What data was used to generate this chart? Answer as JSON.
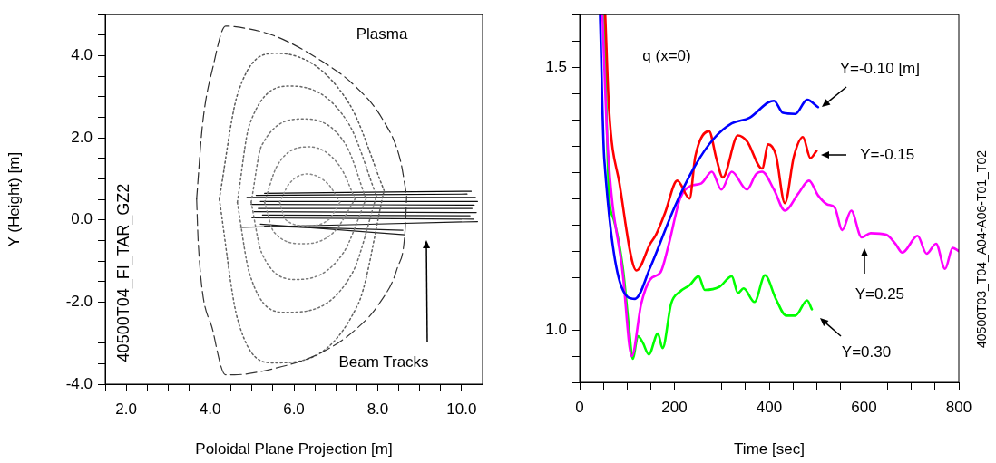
{
  "chart_data": [
    {
      "type": "line",
      "xlabel": "Poloidal Plane Projection [m]",
      "ylabel": "Y (Height) [m]",
      "xlim": [
        1.5,
        10.5
      ],
      "ylim": [
        -4,
        5
      ],
      "xticks": [
        {
          "value": 1.5,
          "label": null
        },
        {
          "value": 2,
          "label": "2.0"
        },
        {
          "value": 2.5,
          "label": null
        },
        {
          "value": 3,
          "label": null
        },
        {
          "value": 3.5,
          "label": null
        },
        {
          "value": 4,
          "label": "4.0"
        },
        {
          "value": 4.5,
          "label": null
        },
        {
          "value": 5,
          "label": null
        },
        {
          "value": 5.5,
          "label": null
        },
        {
          "value": 6,
          "label": "6.0"
        },
        {
          "value": 6.5,
          "label": null
        },
        {
          "value": 7,
          "label": null
        },
        {
          "value": 7.5,
          "label": null
        },
        {
          "value": 8,
          "label": "8.0"
        },
        {
          "value": 8.5,
          "label": null
        },
        {
          "value": 9,
          "label": null
        },
        {
          "value": 9.5,
          "label": null
        },
        {
          "value": 10,
          "label": "10.0"
        },
        {
          "value": 10.5,
          "label": null
        }
      ],
      "yticks": [
        {
          "value": -4,
          "label": "-4.0"
        },
        {
          "value": -3.5,
          "label": null
        },
        {
          "value": -3,
          "label": null
        },
        {
          "value": -2.5,
          "label": null
        },
        {
          "value": -2,
          "label": "-2.0"
        },
        {
          "value": -1.5,
          "label": null
        },
        {
          "value": -1,
          "label": null
        },
        {
          "value": -0.5,
          "label": null
        },
        {
          "value": 0,
          "label": "0.0"
        },
        {
          "value": 0.5,
          "label": null
        },
        {
          "value": 1,
          "label": null
        },
        {
          "value": 1.5,
          "label": null
        },
        {
          "value": 2,
          "label": "2.0"
        },
        {
          "value": 2.5,
          "label": null
        },
        {
          "value": 3,
          "label": null
        },
        {
          "value": 3.5,
          "label": null
        },
        {
          "value": 4,
          "label": "4.0"
        },
        {
          "value": 4.5,
          "label": null
        },
        {
          "value": 5,
          "label": null
        }
      ],
      "grid": false,
      "legend": false,
      "marker": "none",
      "line_style": "solid",
      "annotations": [
        "Plasma",
        "40500T04_FI_TAR_GZ2",
        "Beam Tracks"
      ],
      "series": [
        {
          "color": "#2c2c2c",
          "line_style": "dashed",
          "x": [
            3.68,
            3.82,
            4.08,
            4.37,
            4.58,
            5.52,
            6.6,
            7.46,
            8.11,
            8.54,
            8.69
          ],
          "values": [
            0.51,
            2.32,
            3.77,
            4.72,
            4.71,
            4.49,
            3.91,
            3.26,
            2.46,
            1.45,
            0.58
          ]
        },
        {
          "color": "#343434",
          "line_style": "dashed",
          "x": [
            3.68,
            3.72,
            4.08,
            4.37,
            4.58,
            5.52,
            6.6,
            7.46,
            8.04,
            8.47,
            8.65,
            8.69
          ],
          "values": [
            0.51,
            -0.58,
            -2.75,
            -3.77,
            -3.77,
            -3.62,
            -3.26,
            -2.68,
            -2.03,
            -1.16,
            -0.29,
            0.58
          ]
        },
        {
          "color": "#5a5a5a",
          "line_style": "dotted",
          "x": [
            4.22,
            4.65,
            5.59,
            7.32,
            8.15
          ],
          "values": [
            0.51,
            3.04,
            4.06,
            2.83,
            0.72
          ]
        },
        {
          "color": "#606060",
          "line_style": "dotted",
          "x": [
            4.22,
            4.65,
            5.52,
            7.54,
            8.15
          ],
          "values": [
            0.51,
            -2.39,
            -3.48,
            -2.03,
            0.72
          ]
        },
        {
          "color": "#666666",
          "line_style": "dotted",
          "x": [
            4.65,
            4.94,
            5.95,
            7.32,
            7.97
          ],
          "values": [
            0.43,
            2.32,
            3.26,
            2.32,
            0.58
          ]
        },
        {
          "color": "#6c6c6c",
          "line_style": "dotted",
          "x": [
            4.65,
            4.94,
            5.81,
            7.39,
            7.97
          ],
          "values": [
            0.43,
            -1.3,
            -2.25,
            -1.3,
            0.58
          ]
        },
        {
          "color": "#727272",
          "line_style": "dotted",
          "x": [
            4.98,
            5.23,
            6.24,
            7.25,
            7.72
          ],
          "values": [
            0.43,
            1.81,
            2.46,
            1.81,
            0.51
          ]
        },
        {
          "color": "#787878",
          "line_style": "dotted",
          "x": [
            4.98,
            5.23,
            6.09,
            7.18,
            7.72
          ],
          "values": [
            0.43,
            -0.8,
            -1.45,
            -0.8,
            0.51
          ]
        },
        {
          "color": "#7e7e7e",
          "line_style": "dotted",
          "x": [
            5.3,
            5.59,
            6.38,
            7.1,
            7.46
          ],
          "values": [
            0.43,
            1.3,
            1.78,
            1.3,
            0.51
          ]
        },
        {
          "color": "#848484",
          "line_style": "dotted",
          "x": [
            5.3,
            5.52,
            6.24,
            6.96,
            7.46
          ],
          "values": [
            0.43,
            -0.29,
            -0.58,
            -0.29,
            0.51
          ]
        },
        {
          "color": "#8a8a8a",
          "line_style": "dotted",
          "x": [
            5.66,
            5.88,
            6.31,
            6.82,
            7.1
          ],
          "values": [
            0.43,
            0.87,
            1.12,
            0.87,
            0.43
          ]
        },
        {
          "color": "#909090",
          "line_style": "dotted",
          "x": [
            5.66,
            5.81,
            6.31,
            6.82,
            7.1
          ],
          "values": [
            0.43,
            0.0,
            -0.14,
            0.0,
            0.43
          ]
        },
        {
          "color": "#080808",
          "x": [
            5.3,
            10.23
          ],
          "values": [
            0.65,
            0.7
          ]
        },
        {
          "color": "#0a0a0a",
          "x": [
            5.1,
            10.13
          ],
          "values": [
            0.6,
            0.63
          ]
        },
        {
          "color": "#0c0c0c",
          "x": [
            4.88,
            10.33
          ],
          "values": [
            0.55,
            0.55
          ]
        },
        {
          "color": "#0e0e0e",
          "x": [
            5.2,
            10.38
          ],
          "values": [
            0.45,
            0.45
          ]
        },
        {
          "color": "#101010",
          "x": [
            4.98,
            10.3
          ],
          "values": [
            0.38,
            0.36
          ]
        },
        {
          "color": "#121212",
          "x": [
            5.15,
            10.25
          ],
          "values": [
            0.28,
            0.28
          ]
        },
        {
          "color": "#141414",
          "x": [
            5.05,
            10.35
          ],
          "values": [
            0.2,
            0.18
          ]
        },
        {
          "color": "#161616",
          "x": [
            5.25,
            10.2
          ],
          "values": [
            0.12,
            0.1
          ]
        },
        {
          "color": "#181818",
          "x": [
            5.0,
            10.28
          ],
          "values": [
            0.05,
            0.02
          ]
        },
        {
          "color": "#1a1a1a",
          "x": [
            4.73,
            10.38
          ],
          "values": [
            -0.18,
            -0.04
          ]
        },
        {
          "color": "#1c1c1c",
          "x": [
            5.2,
            8.65
          ],
          "values": [
            -0.1,
            -0.36
          ]
        },
        {
          "color": "#1e1e1e",
          "x": [
            5.3,
            8.6
          ],
          "values": [
            -0.15,
            -0.25
          ]
        }
      ]
    },
    {
      "type": "line",
      "xlabel": "Time [sec]",
      "xlim": [
        0,
        800
      ],
      "ylim": [
        0.9,
        1.6
      ],
      "xticks": [
        0,
        {
          "value": 50,
          "label": null
        },
        {
          "value": 100,
          "label": null
        },
        {
          "value": 150,
          "label": null
        },
        200,
        {
          "value": 250,
          "label": null
        },
        {
          "value": 300,
          "label": null
        },
        {
          "value": 350,
          "label": null
        },
        400,
        {
          "value": 450,
          "label": null
        },
        {
          "value": 500,
          "label": null
        },
        {
          "value": 550,
          "label": null
        },
        600,
        {
          "value": 650,
          "label": null
        },
        {
          "value": 700,
          "label": null
        },
        {
          "value": 750,
          "label": null
        },
        800
      ],
      "yticks": [
        {
          "value": 0.9,
          "label": null
        },
        {
          "value": 0.95,
          "label": null
        },
        {
          "value": 1.0,
          "label": "1.0"
        },
        {
          "value": 1.05,
          "label": null
        },
        {
          "value": 1.1,
          "label": null
        },
        {
          "value": 1.15,
          "label": null
        },
        {
          "value": 1.2,
          "label": null
        },
        {
          "value": 1.25,
          "label": null
        },
        {
          "value": 1.3,
          "label": null
        },
        {
          "value": 1.35,
          "label": null
        },
        {
          "value": 1.4,
          "label": null
        },
        {
          "value": 1.45,
          "label": null
        },
        {
          "value": 1.5,
          "label": "1.5"
        },
        {
          "value": 1.55,
          "label": null
        },
        {
          "value": 1.6,
          "label": null
        }
      ],
      "grid": false,
      "legend": false,
      "marker": "none",
      "line_style": "solid",
      "annotations": [
        "q (x=0)",
        "40500T03_T04_A04-A06-T01_T02"
      ],
      "series": [
        {
          "name": "Y=-0.10 [m]",
          "color": "#0000ff",
          "x": [
            43,
            52,
            117,
            149,
            200,
            244,
            283,
            321,
            359,
            398,
            410,
            429,
            455,
            480,
            503
          ],
          "values": [
            1.6,
            1.325,
            1.059,
            1.119,
            1.233,
            1.313,
            1.364,
            1.393,
            1.404,
            1.433,
            1.436,
            1.413,
            1.411,
            1.438,
            1.424
          ]
        },
        {
          "name": "Y=-0.15",
          "color": "#ff0000",
          "x": [
            54,
            62,
            84,
            120,
            149,
            161,
            180,
            206,
            232,
            244,
            273,
            289,
            302,
            334,
            353,
            385,
            398,
            414,
            433,
            452,
            471,
            487,
            500
          ],
          "values": [
            1.6,
            1.421,
            1.279,
            1.113,
            1.164,
            1.181,
            1.222,
            1.284,
            1.25,
            1.33,
            1.378,
            1.324,
            1.29,
            1.37,
            1.359,
            1.307,
            1.353,
            1.333,
            1.241,
            1.33,
            1.367,
            1.327,
            1.341
          ]
        },
        {
          "name": "Y=0.25",
          "color": "#ff00ff",
          "x": [
            48,
            59,
            91,
            110,
            130,
            149,
            171,
            187,
            212,
            232,
            257,
            279,
            299,
            321,
            353,
            372,
            385,
            410,
            433,
            461,
            484,
            503,
            522,
            538,
            554,
            573,
            595,
            614,
            647,
            666,
            681,
            713,
            732,
            752,
            771,
            787,
            800
          ],
          "values": [
            1.6,
            1.353,
            1.107,
            0.95,
            1.05,
            1.096,
            1.11,
            1.159,
            1.25,
            1.273,
            1.279,
            1.301,
            1.267,
            1.301,
            1.267,
            1.296,
            1.301,
            1.267,
            1.227,
            1.259,
            1.284,
            1.256,
            1.239,
            1.233,
            1.19,
            1.227,
            1.176,
            1.184,
            1.181,
            1.164,
            1.147,
            1.179,
            1.145,
            1.164,
            1.116,
            1.156,
            1.15
          ]
        },
        {
          "name": "Y=0.30",
          "color": "#00ff00",
          "x": [
            52,
            62,
            72,
            91,
            104,
            112,
            123,
            133,
            146,
            165,
            175,
            193,
            212,
            232,
            251,
            264,
            295,
            321,
            334,
            346,
            369,
            391,
            414,
            436,
            455,
            480,
            490
          ],
          "values": [
            1.6,
            1.256,
            1.21,
            1.119,
            1.005,
            0.945,
            0.988,
            0.976,
            0.953,
            0.993,
            0.965,
            1.05,
            1.073,
            1.085,
            1.102,
            1.076,
            1.082,
            1.102,
            1.07,
            1.079,
            1.053,
            1.104,
            1.059,
            1.027,
            1.027,
            1.056,
            1.039
          ]
        }
      ]
    }
  ]
}
